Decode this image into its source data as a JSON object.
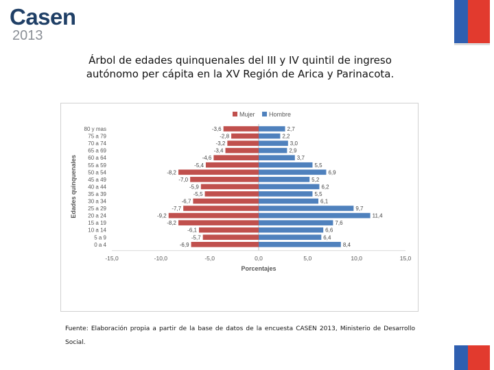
{
  "logo": {
    "name": "Casen",
    "year": "2013"
  },
  "title": "Árbol de edades quinquenales del III y IV quintil de ingreso autónomo per cápita en la XV Región de Arica y Parinacota.",
  "footnote": "Fuente: Elaboración propia a partir de la base de datos de la encuesta CASEN 2013, Ministerio de Desarrollo Social.",
  "colors": {
    "mujer": "#c0504d",
    "hombre": "#4f81bd",
    "flag_blue": "#2f5fb0",
    "flag_red": "#e23a2e"
  },
  "chart_data": {
    "type": "bar",
    "orientation": "horizontal",
    "title": "",
    "xlabel": "Porcentajes",
    "ylabel": "Edades quinquenales",
    "xlim": [
      -15,
      15
    ],
    "xticks": [
      "-15,0",
      "-10,0",
      "-5,0",
      "0,0",
      "5,0",
      "10,0",
      "15,0"
    ],
    "categories": [
      "80 y mas",
      "75 a 79",
      "70 a 74",
      "65 a 69",
      "60 a 64",
      "55 a 59",
      "50 a 54",
      "45 a 49",
      "40 a 44",
      "35 a 39",
      "30 a 34",
      "25 a 29",
      "20 a 24",
      "15 a 19",
      "10 a 14",
      "5 a 9",
      "0 a 4"
    ],
    "legend_position": "top",
    "series": [
      {
        "name": "Mujer",
        "values": [
          -3.6,
          -2.8,
          -3.2,
          -3.4,
          -4.6,
          -5.4,
          -8.2,
          -7.0,
          -5.9,
          -5.5,
          -6.7,
          -7.7,
          -9.2,
          -8.2,
          -6.1,
          -5.7,
          -6.9
        ],
        "labels": [
          "-3,6",
          "-2,8",
          "-3,2",
          "-3,4",
          "-4,6",
          "-5,4",
          "-8,2",
          "-7,0",
          "-5,9",
          "-5,5",
          "-6,7",
          "-7,7",
          "-9,2",
          "-8,2",
          "-6,1",
          "-5,7",
          "-6,9"
        ]
      },
      {
        "name": "Hombre",
        "values": [
          2.7,
          2.2,
          3.0,
          2.9,
          3.7,
          5.5,
          6.9,
          5.2,
          6.2,
          5.5,
          6.1,
          9.7,
          11.4,
          7.6,
          6.6,
          6.4,
          8.4
        ],
        "labels": [
          "2,7",
          "2,2",
          "3,0",
          "2,9",
          "3,7",
          "5,5",
          "6,9",
          "5,2",
          "6,2",
          "5,5",
          "6,1",
          "9,7",
          "11,4",
          "7,6",
          "6,6",
          "6,4",
          "8,4"
        ]
      }
    ]
  }
}
